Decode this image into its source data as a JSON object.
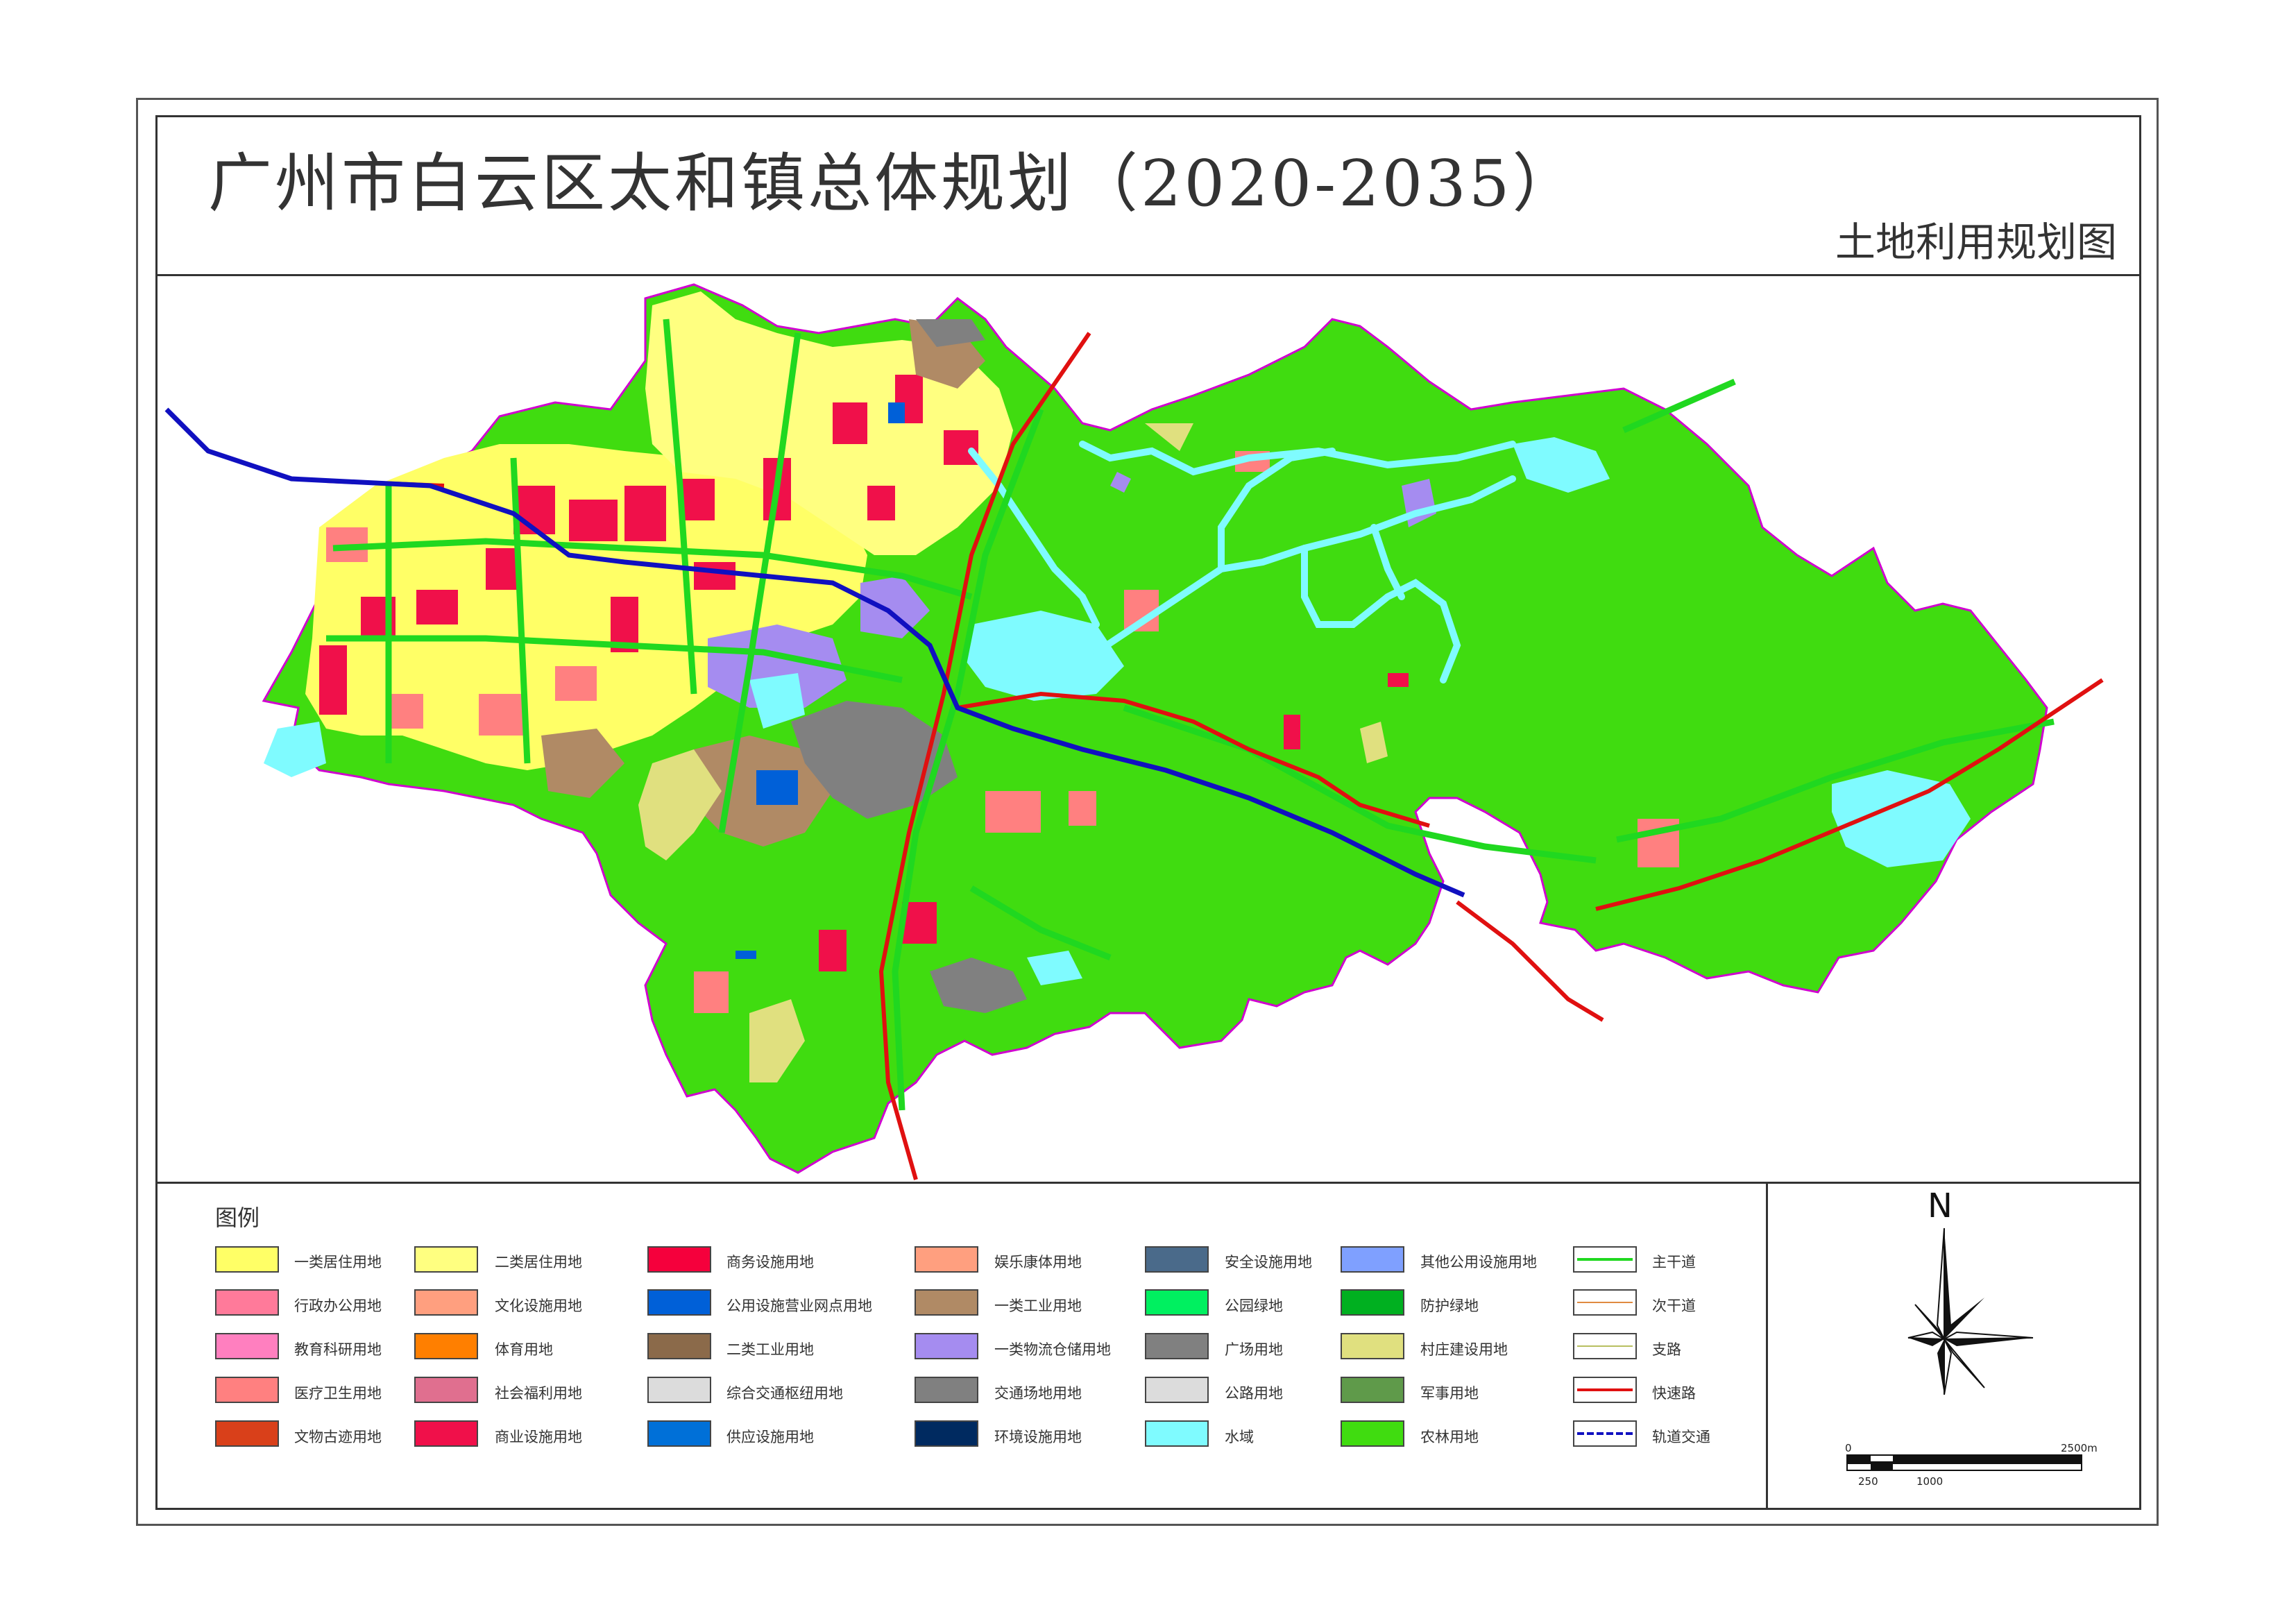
{
  "header": {
    "title": "广州市白云区太和镇总体规划（2020-2035）",
    "subtitle": "土地利用规划图"
  },
  "legend": {
    "title": "图例",
    "columns": [
      [
        {
          "label": "一类居住用地",
          "color": "#ffff66"
        },
        {
          "label": "行政办公用地",
          "color": "#ff7a9a"
        },
        {
          "label": "教育科研用地",
          "color": "#ff7fbf"
        },
        {
          "label": "医疗卫生用地",
          "color": "#ff8080"
        },
        {
          "label": "文物古迹用地",
          "color": "#d9401a"
        }
      ],
      [
        {
          "label": "二类居住用地",
          "color": "#ffff80"
        },
        {
          "label": "文化设施用地",
          "color": "#ff9f7f"
        },
        {
          "label": "体育用地",
          "color": "#ff7f00"
        },
        {
          "label": "社会福利用地",
          "color": "#e06f8f"
        },
        {
          "label": "商业设施用地",
          "color": "#f0104a"
        }
      ],
      [
        {
          "label": "商务设施用地",
          "color": "#f5003c"
        },
        {
          "label": "公用设施营业网点用地",
          "color": "#0060d8"
        },
        {
          "label": "二类工业用地",
          "color": "#8b6a4a"
        },
        {
          "label": "综合交通枢纽用地",
          "color": "#dcdcdc"
        },
        {
          "label": "供应设施用地",
          "color": "#0070d8"
        }
      ],
      [
        {
          "label": "娱乐康体用地",
          "color": "#ff9f7f"
        },
        {
          "label": "一类工业用地",
          "color": "#b08a65"
        },
        {
          "label": "一类物流仓储用地",
          "color": "#a58cf0"
        },
        {
          "label": "交通场地用地",
          "color": "#808080"
        },
        {
          "label": "环境设施用地",
          "color": "#002a60"
        }
      ],
      [
        {
          "label": "安全设施用地",
          "color": "#4a6a8a"
        },
        {
          "label": "公园绿地",
          "color": "#00f060"
        },
        {
          "label": "广场用地",
          "color": "#808080"
        },
        {
          "label": "公路用地",
          "color": "#dcdcdc"
        },
        {
          "label": "水域",
          "color": "#7ffbff"
        }
      ],
      [
        {
          "label": "其他公用设施用地",
          "color": "#7fa0ff"
        },
        {
          "label": "防护绿地",
          "color": "#00b020"
        },
        {
          "label": "村庄建设用地",
          "color": "#e0e07f"
        },
        {
          "label": "军事用地",
          "color": "#5f9a4a"
        },
        {
          "label": "农林用地",
          "color": "#40dc10"
        }
      ]
    ],
    "road_items": [
      {
        "label": "主干道",
        "color": "#20d820"
      },
      {
        "label": "次干道",
        "color": "#e08a40"
      },
      {
        "label": "支路",
        "color": "#b8c060"
      },
      {
        "label": "快速路",
        "color": "#e01010"
      },
      {
        "label": "轨道交通",
        "color": "#1010c0"
      }
    ]
  },
  "compass": {
    "label": "N"
  },
  "scale_bar": {
    "zero": "0",
    "end": "2500m",
    "mark_250": "250",
    "mark_1000": "1000"
  },
  "colors": {
    "farmland": "#40dc10",
    "water": "#7ffbff",
    "boundary": "#d000d0",
    "expressway": "#e01010",
    "rail": "#1010c0",
    "main_road": "#20d820"
  }
}
